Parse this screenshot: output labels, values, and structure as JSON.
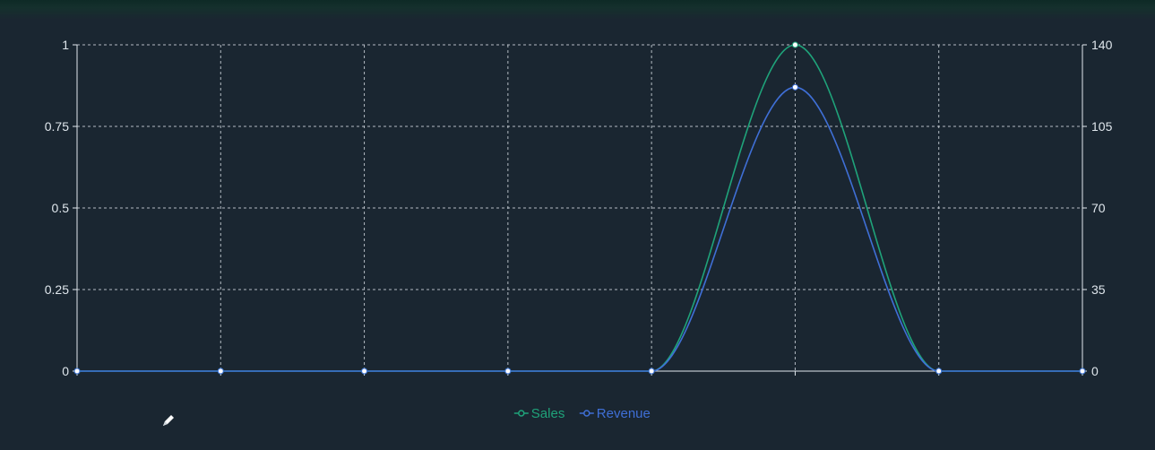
{
  "chart_data": {
    "type": "line",
    "smooth": true,
    "x": [
      0,
      1,
      2,
      3,
      4,
      5,
      6,
      7
    ],
    "show_x_tick_labels": false,
    "y_left": {
      "ticks": [
        "0",
        "0.25",
        "0.5",
        "0.75",
        "1"
      ],
      "min": 0,
      "max": 1
    },
    "y_right": {
      "ticks": [
        "0",
        "35",
        "70",
        "105",
        "140"
      ],
      "min": 0,
      "max": 140
    },
    "grid": true,
    "legend_position": "bottom-center",
    "series": [
      {
        "name": "Sales",
        "axis": "left",
        "color": "#1fa37a",
        "values": [
          0,
          0,
          0,
          0,
          0,
          1,
          0,
          0
        ]
      },
      {
        "name": "Revenue",
        "axis": "left",
        "color": "#3f6fd6",
        "values": [
          0,
          0,
          0,
          0,
          0,
          0.87,
          0,
          0
        ]
      }
    ]
  },
  "icons": {
    "cursor": "pencil-icon"
  }
}
